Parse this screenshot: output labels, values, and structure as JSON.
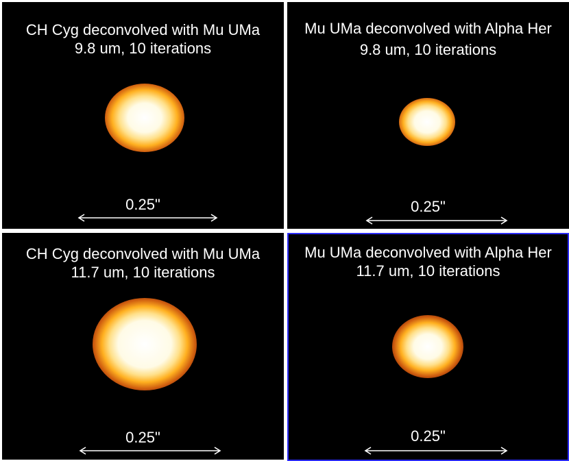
{
  "panels": [
    {
      "title_line1": "CH Cyg deconvolved with Mu UMa",
      "title_line2": "9.8 um, 10 iterations",
      "scale_label": "0.25\""
    },
    {
      "title_line1": "Mu UMa deconvolved with Alpha Her",
      "title_line2": "9.8 um, 10 iterations",
      "scale_label": "0.25\""
    },
    {
      "title_line1": "CH Cyg deconvolved with Mu UMa",
      "title_line2": "11.7 um, 10 iterations",
      "scale_label": "0.25\""
    },
    {
      "title_line1": "Mu UMa deconvolved with Alpha Her",
      "title_line2": "11.7 um, 10 iterations",
      "scale_label": "0.25\""
    }
  ],
  "colors": {
    "background": "#000000",
    "frame": "#c8c8c8",
    "selected_border": "#2a2aff",
    "text": "#ffffff",
    "colormap": [
      "#ffffff",
      "#fff6cc",
      "#ffcc33",
      "#e07a10",
      "#a32a00",
      "#4a0800",
      "#000000"
    ]
  }
}
